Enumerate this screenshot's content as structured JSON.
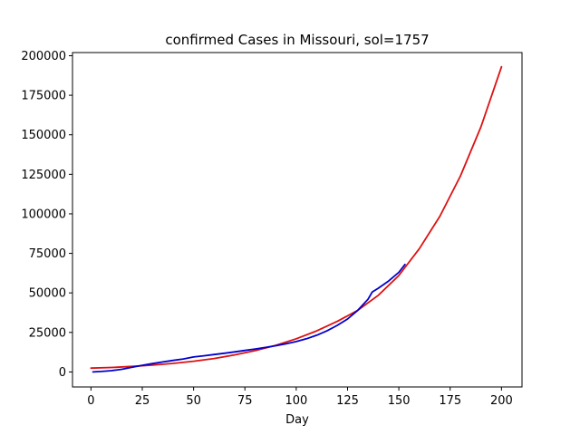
{
  "chart_data": {
    "type": "line",
    "title": "confirmed Cases in Missouri, sol=1757",
    "xlabel": "Day",
    "ylabel": "",
    "xlim": [
      -9,
      210
    ],
    "ylim": [
      -9500,
      202000
    ],
    "x_ticks": [
      0,
      25,
      50,
      75,
      100,
      125,
      150,
      175,
      200
    ],
    "x_tick_labels": [
      "0",
      "25",
      "50",
      "75",
      "100",
      "125",
      "150",
      "175",
      "200"
    ],
    "y_ticks": [
      0,
      25000,
      50000,
      75000,
      100000,
      125000,
      150000,
      175000,
      200000
    ],
    "y_tick_labels": [
      "0",
      "25000",
      "50000",
      "75000",
      "100000",
      "125000",
      "150000",
      "175000",
      "200000"
    ],
    "grid": false,
    "series": [
      {
        "color": "#dd1111",
        "x": [
          0,
          10,
          20,
          30,
          40,
          50,
          60,
          70,
          80,
          90,
          100,
          110,
          120,
          130,
          140,
          150,
          160,
          170,
          180,
          190,
          200
        ],
        "values": [
          2400,
          2800,
          3500,
          4300,
          5400,
          6800,
          8500,
          10800,
          13500,
          16800,
          21000,
          26000,
          32000,
          39000,
          48500,
          61000,
          78000,
          98500,
          124000,
          155000,
          193000
        ]
      },
      {
        "color": "#0000cc",
        "x": [
          1,
          5,
          10,
          15,
          20,
          25,
          30,
          35,
          40,
          45,
          50,
          55,
          60,
          65,
          70,
          75,
          80,
          85,
          90,
          95,
          100,
          105,
          110,
          115,
          120,
          125,
          130,
          135,
          137,
          140,
          145,
          150,
          153
        ],
        "values": [
          0,
          300,
          800,
          1700,
          3000,
          4200,
          5300,
          6300,
          7300,
          8200,
          9500,
          10200,
          11000,
          11800,
          12700,
          13600,
          14500,
          15500,
          16600,
          17800,
          19200,
          21000,
          23200,
          26000,
          29500,
          33500,
          39000,
          46000,
          50500,
          53000,
          57500,
          63000,
          68000
        ]
      }
    ]
  }
}
